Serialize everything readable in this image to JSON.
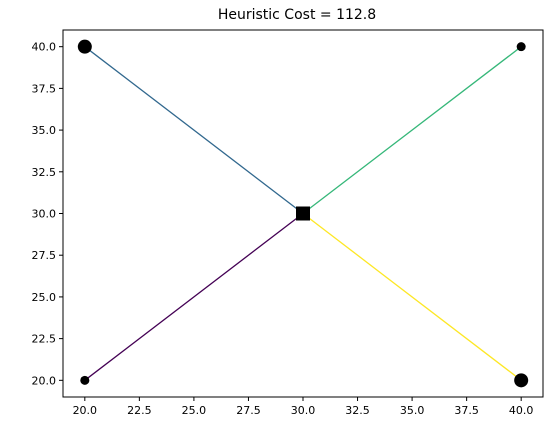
{
  "chart_data": {
    "type": "scatter",
    "title": "Heuristic Cost = 112.8",
    "xlabel": "",
    "ylabel": "",
    "xlim": [
      19.0,
      41.0
    ],
    "ylim": [
      19.0,
      41.0
    ],
    "grid": false,
    "x_ticks": [
      "20.0",
      "22.5",
      "25.0",
      "27.5",
      "30.0",
      "32.5",
      "35.0",
      "37.5",
      "40.0"
    ],
    "x_tick_values": [
      20.0,
      22.5,
      25.0,
      27.5,
      30.0,
      32.5,
      35.0,
      37.5,
      40.0
    ],
    "y_ticks": [
      "20.0",
      "22.5",
      "25.0",
      "27.5",
      "30.0",
      "32.5",
      "35.0",
      "37.5",
      "40.0"
    ],
    "y_tick_values": [
      20.0,
      22.5,
      25.0,
      27.5,
      30.0,
      32.5,
      35.0,
      37.5,
      40.0
    ],
    "center": {
      "x": 30,
      "y": 30,
      "marker": "square"
    },
    "points": [
      {
        "x": 20,
        "y": 40,
        "size": "large"
      },
      {
        "x": 40,
        "y": 40,
        "size": "small"
      },
      {
        "x": 20,
        "y": 20,
        "size": "small"
      },
      {
        "x": 40,
        "y": 20,
        "size": "large"
      }
    ],
    "edges": [
      {
        "from": [
          20,
          20
        ],
        "to": [
          30,
          30
        ],
        "color": "#440154"
      },
      {
        "from": [
          20,
          40
        ],
        "to": [
          30,
          30
        ],
        "color": "#31688e"
      },
      {
        "from": [
          40,
          40
        ],
        "to": [
          30,
          30
        ],
        "color": "#35b779"
      },
      {
        "from": [
          40,
          20
        ],
        "to": [
          30,
          30
        ],
        "color": "#fde725"
      }
    ]
  }
}
